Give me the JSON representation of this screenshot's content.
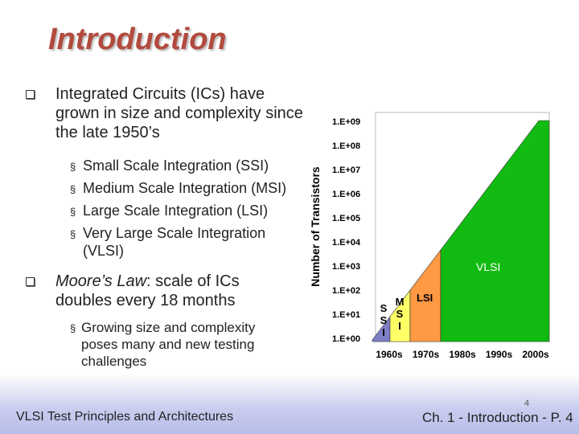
{
  "header": {
    "title": "Introduction"
  },
  "bullets": [
    {
      "text": "Integrated Circuits (ICs) have grown in size and complexity since the late 1950’s",
      "items": [
        "Small Scale Integration (SSI)",
        "Medium Scale Integration (MSI)",
        "Large Scale Integration (LSI)",
        "Very Large Scale Integration (VLSI)"
      ]
    },
    {
      "emphasis": "Moore’s Law",
      "text": ": scale of ICs doubles every 18 months",
      "items": [
        "Growing size and complexity poses many and new testing challenges"
      ]
    }
  ],
  "figure": {
    "y_axis_title": "Number of Transistors",
    "y_ticks": [
      "1.E+09",
      "1.E+08",
      "1.E+07",
      "1.E+06",
      "1.E+05",
      "1.E+04",
      "1.E+03",
      "1.E+02",
      "1.E+01",
      "1.E+00"
    ],
    "x_ticks": [
      "1960s",
      "1970s",
      "1980s",
      "1990s",
      "2000s"
    ],
    "regions": [
      "SSI",
      "MSI",
      "LSI",
      "VLSI"
    ]
  },
  "footer": {
    "text": "VLSI Test Principles and Architectures",
    "page": "4",
    "chapter": "Ch. 1 - Introduction - P. 4"
  }
}
